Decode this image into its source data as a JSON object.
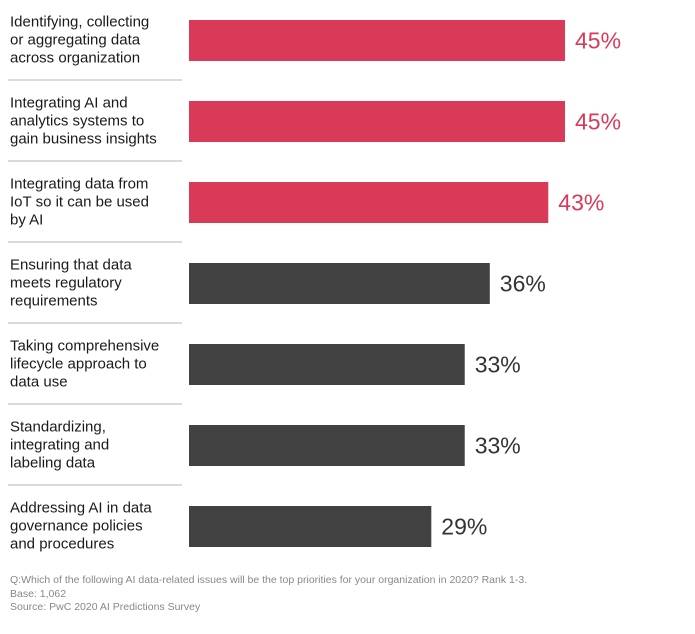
{
  "chart_data": {
    "type": "bar",
    "orientation": "horizontal",
    "categories": [
      [
        "Identifying, collecting",
        "or aggregating data",
        "across organization"
      ],
      [
        "Integrating AI and",
        "analytics systems to",
        "gain business insights"
      ],
      [
        "Integrating data from",
        "IoT so it can be used",
        "by AI"
      ],
      [
        "Ensuring that data",
        "meets regulatory",
        "requirements"
      ],
      [
        "Taking comprehensive",
        "lifecycle approach to",
        "data use"
      ],
      [
        "Standardizing,",
        "integrating and",
        "labeling data"
      ],
      [
        "Addressing AI in data",
        "governance policies",
        "and procedures"
      ]
    ],
    "values": [
      45,
      45,
      43,
      36,
      33,
      33,
      29
    ],
    "value_labels": [
      "45%",
      "45%",
      "43%",
      "36%",
      "33%",
      "33%",
      "29%"
    ],
    "highlighted": [
      true,
      true,
      true,
      false,
      false,
      false,
      false
    ],
    "xlim": [
      0,
      45
    ],
    "title": "",
    "xlabel": "",
    "ylabel": ""
  },
  "colors": {
    "highlight": "#d93a58",
    "normal": "#414141",
    "separator": "#b5b5b5"
  },
  "footnote": {
    "question": "Q:Which of the following AI data-related issues will be the top priorities for your organization in 2020? Rank 1-3.",
    "base": "Base: 1,062",
    "source": "Source: PwC 2020 AI Predictions Survey"
  }
}
